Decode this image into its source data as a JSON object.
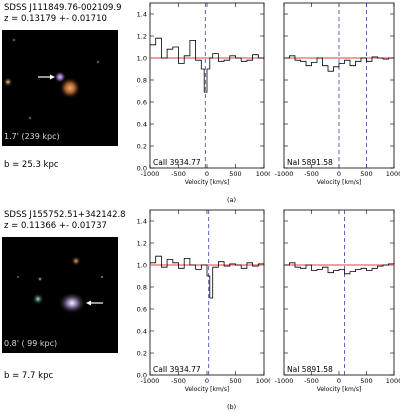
{
  "panels": [
    {
      "id": "a",
      "title_line1": "SDSS J111849.76-002109.9",
      "title_line2": "z = 0.13179 +- 0.01710",
      "angular_label": "1.7' (239 kpc)",
      "impact_label": "b = 25.3 kpc",
      "caption": "(a)",
      "spectra": [
        {
          "label": "CaII 3934.77",
          "dashed_lines": [
            -30
          ],
          "profile": {
            "x": [
              -1000,
              -900,
              -800,
              -700,
              -600,
              -500,
              -400,
              -300,
              -200,
              -100,
              -50,
              0,
              50,
              100,
              200,
              300,
              400,
              500,
              600,
              700,
              800,
              900,
              1000
            ],
            "y": [
              1.12,
              1.18,
              1.0,
              1.08,
              1.1,
              0.95,
              1.02,
              1.16,
              0.98,
              0.9,
              0.69,
              0.9,
              1.0,
              1.04,
              0.97,
              0.98,
              1.02,
              1.0,
              0.97,
              0.98,
              1.03,
              1.0,
              1.01
            ]
          }
        },
        {
          "label": "NaI 5891.58",
          "dashed_lines": [
            0,
            500
          ],
          "profile": {
            "x": [
              -1000,
              -900,
              -800,
              -700,
              -600,
              -500,
              -400,
              -300,
              -200,
              -100,
              0,
              100,
              200,
              300,
              400,
              500,
              600,
              700,
              800,
              900,
              1000
            ],
            "y": [
              1.0,
              1.02,
              0.98,
              0.97,
              0.93,
              0.96,
              1.0,
              0.93,
              0.88,
              0.92,
              0.95,
              0.98,
              0.93,
              0.97,
              1.0,
              0.97,
              1.01,
              1.0,
              0.99,
              1.0,
              1.0
            ]
          }
        }
      ]
    },
    {
      "id": "b",
      "title_line1": "SDSS J155752.51+342142.8",
      "title_line2": "z = 0.11366 +- 0.01737",
      "angular_label": "0.8' ( 99 kpc)",
      "impact_label": "b =  7.7 kpc",
      "caption": "(b)",
      "spectra": [
        {
          "label": "CaII 3934.77",
          "dashed_lines": [
            30
          ],
          "profile": {
            "x": [
              -1000,
              -900,
              -800,
              -700,
              -600,
              -500,
              -400,
              -300,
              -200,
              -100,
              0,
              50,
              100,
              200,
              300,
              400,
              500,
              600,
              700,
              800,
              900,
              1000
            ],
            "y": [
              1.02,
              1.08,
              0.98,
              1.05,
              1.02,
              0.97,
              1.06,
              1.0,
              0.96,
              1.0,
              0.9,
              0.7,
              0.98,
              1.03,
              0.99,
              1.01,
              1.0,
              0.97,
              1.02,
              0.99,
              1.01,
              1.0
            ]
          }
        },
        {
          "label": "NaI 5891.58",
          "dashed_lines": [
            100
          ],
          "profile": {
            "x": [
              -1000,
              -900,
              -800,
              -700,
              -600,
              -500,
              -400,
              -300,
              -200,
              -100,
              0,
              100,
              200,
              300,
              400,
              500,
              600,
              700,
              800,
              900,
              1000
            ],
            "y": [
              1.0,
              1.02,
              0.98,
              0.97,
              1.0,
              0.95,
              0.96,
              0.98,
              0.93,
              0.95,
              0.96,
              0.92,
              0.94,
              0.96,
              0.97,
              0.95,
              0.97,
              0.99,
              1.0,
              1.01,
              1.02
            ]
          }
        }
      ]
    }
  ],
  "axis": {
    "xlabel": "Velocity [km/s]",
    "xticks": [
      -1000,
      -500,
      0,
      500,
      1000
    ],
    "yticks": [
      "0.0",
      "0.2",
      "0.4",
      "0.6",
      "0.8",
      "1.0",
      "1.2",
      "1.4"
    ],
    "xlim": [
      -1000,
      1000
    ],
    "ylim": [
      0,
      1.5
    ],
    "continuum": 1.0
  },
  "colors": {
    "continuum": "#e04040",
    "dashed": "#3a3ab0",
    "profile": "#000000"
  }
}
